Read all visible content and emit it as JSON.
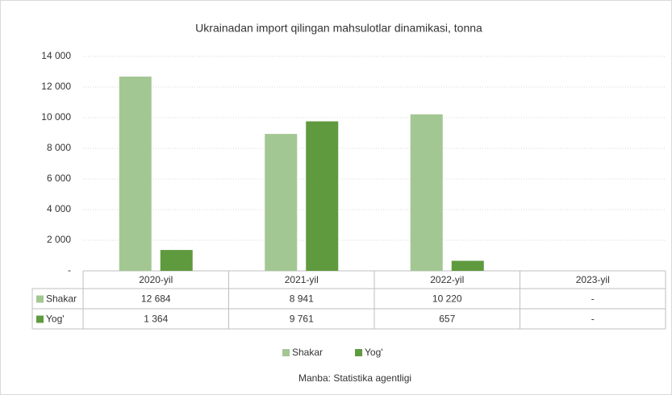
{
  "chart_data": {
    "type": "bar",
    "title": "Ukrainadan import qilingan mahsulotlar dinamikasi, tonna",
    "categories": [
      "2020-yil",
      "2021-yil",
      "2022-yil",
      "2023-yil"
    ],
    "series": [
      {
        "name": "Shakar",
        "color": "#a3c793",
        "values": [
          12684,
          8941,
          10220,
          null
        ],
        "value_labels": [
          "12 684",
          "8 941",
          "10 220",
          "-"
        ]
      },
      {
        "name": "Yog'",
        "color": "#5f9a3e",
        "values": [
          1364,
          9761,
          657,
          null
        ],
        "value_labels": [
          "1 364",
          "9 761",
          "657",
          "-"
        ]
      }
    ],
    "ylim": [
      0,
      14000
    ],
    "yticks": [
      {
        "value": 0,
        "label": "-"
      },
      {
        "value": 2000,
        "label": "2 000"
      },
      {
        "value": 4000,
        "label": "4 000"
      },
      {
        "value": 6000,
        "label": "6 000"
      },
      {
        "value": 8000,
        "label": "8 000"
      },
      {
        "value": 10000,
        "label": "10 000"
      },
      {
        "value": 12000,
        "label": "12 000"
      },
      {
        "value": 14000,
        "label": "14 000"
      }
    ],
    "grid": true,
    "legend": "bottom",
    "source": "Manba: Statistika agentligi"
  }
}
